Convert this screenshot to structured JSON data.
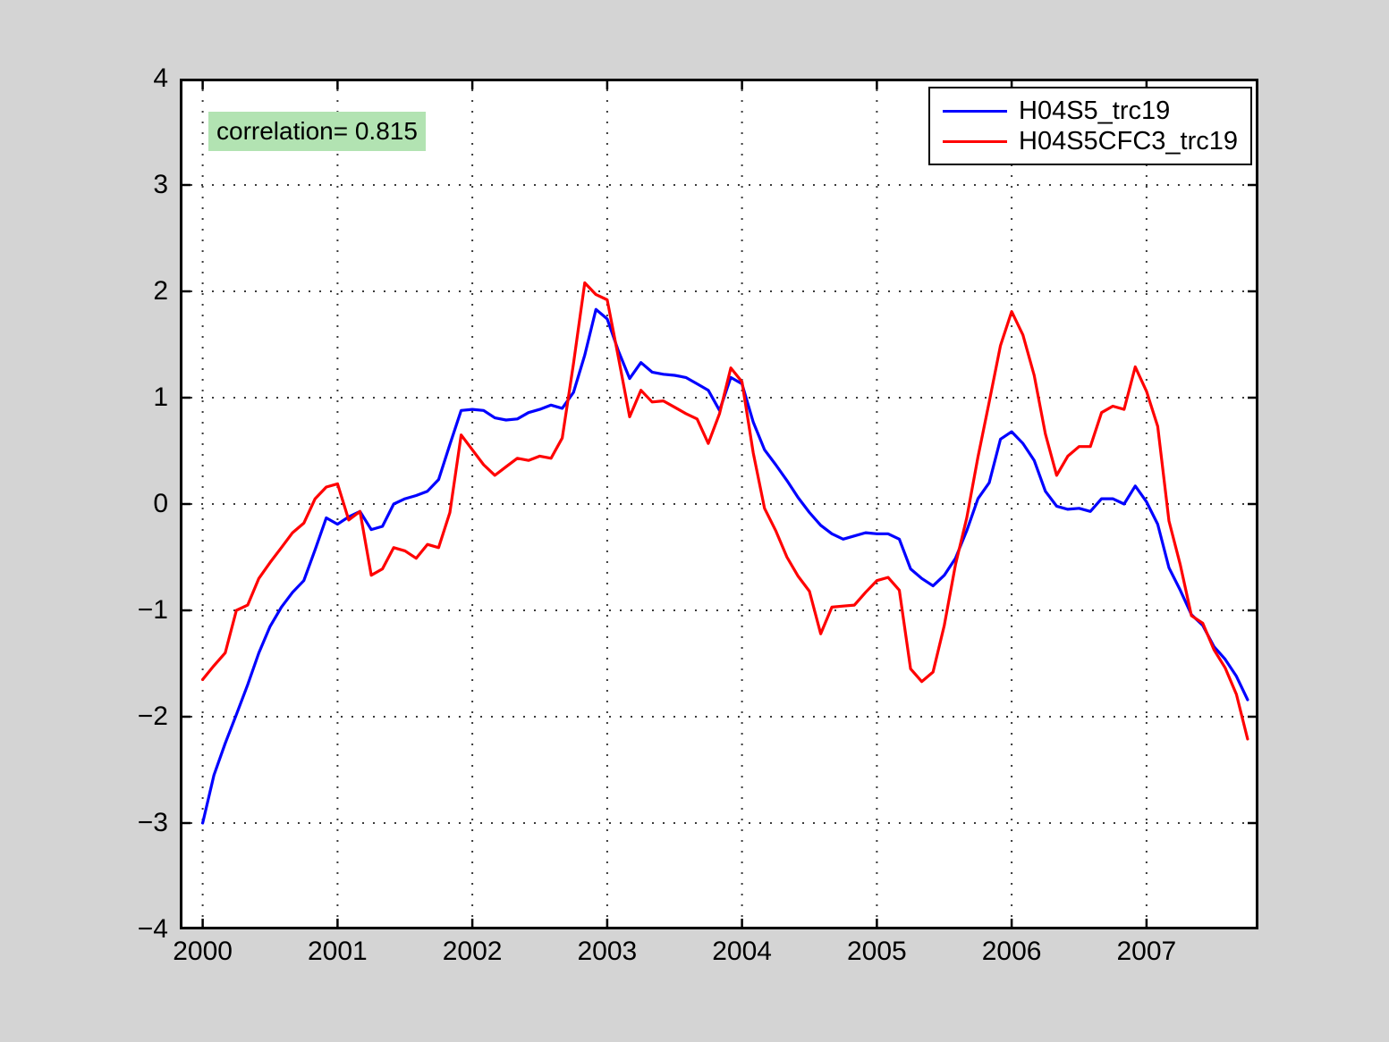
{
  "figure": {
    "background_color": "#d4d4d4",
    "plot_background_color": "#ffffff",
    "axis_color": "#000000",
    "grid_style": "dotted"
  },
  "chart_data": {
    "type": "line",
    "title": "",
    "xlabel": "",
    "ylabel": "",
    "grid": true,
    "legend_position": "top-right",
    "x_axis": {
      "min": 1999.83,
      "max": 2007.83,
      "ticks": [
        2000,
        2001,
        2002,
        2003,
        2004,
        2005,
        2006,
        2007
      ],
      "tick_labels": [
        "2000",
        "2001",
        "2002",
        "2003",
        "2004",
        "2005",
        "2006",
        "2007"
      ]
    },
    "y_axis": {
      "min": -4,
      "max": 4,
      "ticks": [
        -4,
        -3,
        -2,
        -1,
        0,
        1,
        2,
        3,
        4
      ],
      "tick_labels": [
        "−4",
        "−3",
        "−2",
        "−1",
        "0",
        "1",
        "2",
        "3",
        "4"
      ]
    },
    "x": {
      "start": 2000.0,
      "step": 0.0833333,
      "count": 94,
      "sampling": "monthly"
    },
    "series": [
      {
        "name": "H04S5_trc19",
        "color": "#0000ff",
        "values": [
          -3.0,
          -2.55,
          -2.25,
          -1.98,
          -1.7,
          -1.4,
          -1.15,
          -0.97,
          -0.83,
          -0.72,
          -0.43,
          -0.13,
          -0.19,
          -0.12,
          -0.07,
          -0.24,
          -0.21,
          0.0,
          0.05,
          0.08,
          0.12,
          0.23,
          0.56,
          0.88,
          0.89,
          0.88,
          0.81,
          0.79,
          0.8,
          0.86,
          0.89,
          0.93,
          0.9,
          1.05,
          1.4,
          1.83,
          1.74,
          1.44,
          1.18,
          1.33,
          1.24,
          1.22,
          1.21,
          1.19,
          1.13,
          1.07,
          0.88,
          1.19,
          1.13,
          0.77,
          0.51,
          0.37,
          0.22,
          0.06,
          -0.08,
          -0.2,
          -0.28,
          -0.33,
          -0.3,
          -0.27,
          -0.28,
          -0.28,
          -0.33,
          -0.61,
          -0.7,
          -0.77,
          -0.67,
          -0.51,
          -0.25,
          0.05,
          0.2,
          0.61,
          0.68,
          0.57,
          0.41,
          0.12,
          -0.02,
          -0.05,
          -0.04,
          -0.07,
          0.05,
          0.05,
          0.0,
          0.17,
          0.02,
          -0.19,
          -0.6,
          -0.81,
          -1.04,
          -1.14,
          -1.34,
          -1.46,
          -1.62,
          -1.84
        ]
      },
      {
        "name": "H04S5CFC3_trc19",
        "color": "#ff0000",
        "values": [
          -1.65,
          -1.52,
          -1.4,
          -1.0,
          -0.95,
          -0.7,
          -0.55,
          -0.41,
          -0.27,
          -0.18,
          0.05,
          0.16,
          0.19,
          -0.15,
          -0.07,
          -0.67,
          -0.61,
          -0.41,
          -0.44,
          -0.51,
          -0.38,
          -0.41,
          -0.08,
          0.65,
          0.51,
          0.37,
          0.27,
          0.35,
          0.43,
          0.41,
          0.45,
          0.43,
          0.62,
          1.32,
          2.08,
          1.97,
          1.92,
          1.38,
          0.82,
          1.07,
          0.96,
          0.97,
          0.91,
          0.85,
          0.8,
          0.57,
          0.85,
          1.28,
          1.15,
          0.48,
          -0.04,
          -0.25,
          -0.5,
          -0.68,
          -0.82,
          -1.22,
          -0.97,
          -0.96,
          -0.95,
          -0.83,
          -0.72,
          -0.69,
          -0.81,
          -1.55,
          -1.67,
          -1.58,
          -1.14,
          -0.57,
          -0.13,
          0.44,
          0.96,
          1.49,
          1.81,
          1.59,
          1.21,
          0.66,
          0.27,
          0.45,
          0.54,
          0.54,
          0.86,
          0.92,
          0.89,
          1.29,
          1.06,
          0.73,
          -0.16,
          -0.57,
          -1.05,
          -1.12,
          -1.37,
          -1.54,
          -1.79,
          -2.21
        ]
      }
    ],
    "annotations": [
      {
        "text": "correlation= 0.815",
        "x": 2000.04,
        "y": 3.69,
        "background_color": "#b2e3b2",
        "text_color": "#000000"
      }
    ]
  }
}
